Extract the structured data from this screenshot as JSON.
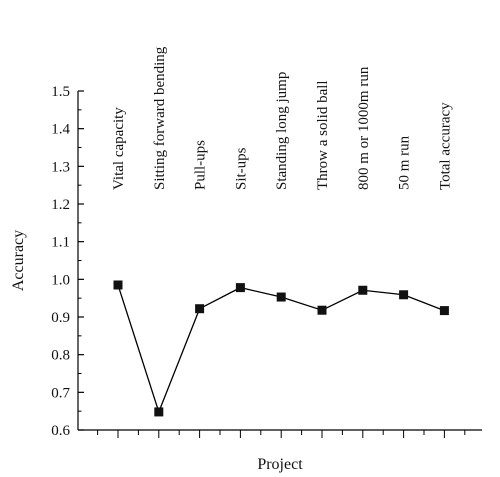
{
  "chart_data": {
    "type": "line",
    "title": "",
    "xlabel": "Project",
    "ylabel": "Accuracy",
    "ylim": [
      0.6,
      1.5
    ],
    "y_ticks": [
      "0.6",
      "0.7",
      "0.8",
      "0.9",
      "1.0",
      "1.1",
      "1.2",
      "1.3",
      "1.4",
      "1.5"
    ],
    "grid": false,
    "legend": "none",
    "marker": "square",
    "categories": [
      "Vital capacity",
      "Sitting forward bending",
      "Pull-ups",
      "Sit-ups",
      "Standing long jump",
      "Throw a solid ball",
      "800 m or 1000m run",
      "50 m run",
      "Total accuracy"
    ],
    "values": [
      0.985,
      0.648,
      0.922,
      0.978,
      0.953,
      0.918,
      0.971,
      0.959,
      0.917
    ],
    "colors": {
      "line": "#000000",
      "marker": "#111111",
      "axis": "#000000"
    }
  }
}
